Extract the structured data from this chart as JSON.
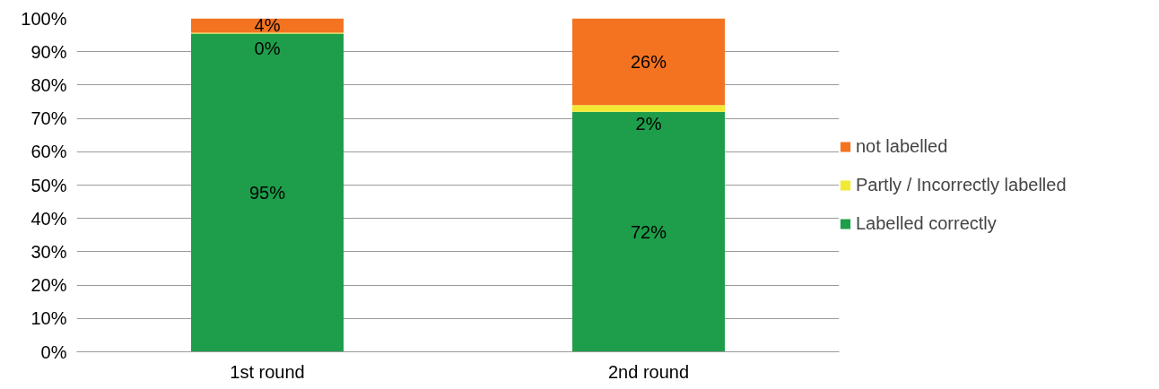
{
  "chart_data": {
    "type": "bar",
    "stacked": true,
    "categories": [
      "1st round",
      "2nd round"
    ],
    "series": [
      {
        "name": "Labelled correctly",
        "color": "#1e9e4a",
        "values": [
          95.4,
          72
        ],
        "value_labels": [
          "95%",
          "72%"
        ]
      },
      {
        "name": "Partly / Incorrectly labelled",
        "color": "#f2e933",
        "values": [
          0.3,
          2
        ],
        "value_labels": [
          "0%",
          "2%"
        ]
      },
      {
        "name": "not labelled",
        "color": "#f47321",
        "values": [
          4.3,
          26
        ],
        "value_labels": [
          "4%",
          "26%"
        ]
      }
    ],
    "ylim": [
      0,
      100
    ],
    "yticks": [
      {
        "value": 0,
        "label": "0%"
      },
      {
        "value": 10,
        "label": "10%"
      },
      {
        "value": 20,
        "label": "20%"
      },
      {
        "value": 30,
        "label": "30%"
      },
      {
        "value": 40,
        "label": "40%"
      },
      {
        "value": 50,
        "label": "50%"
      },
      {
        "value": 60,
        "label": "60%"
      },
      {
        "value": 70,
        "label": "70%"
      },
      {
        "value": 80,
        "label": "80%"
      },
      {
        "value": 90,
        "label": "90%"
      },
      {
        "value": 100,
        "label": "100%"
      }
    ],
    "grid": "y",
    "legend": "right"
  }
}
